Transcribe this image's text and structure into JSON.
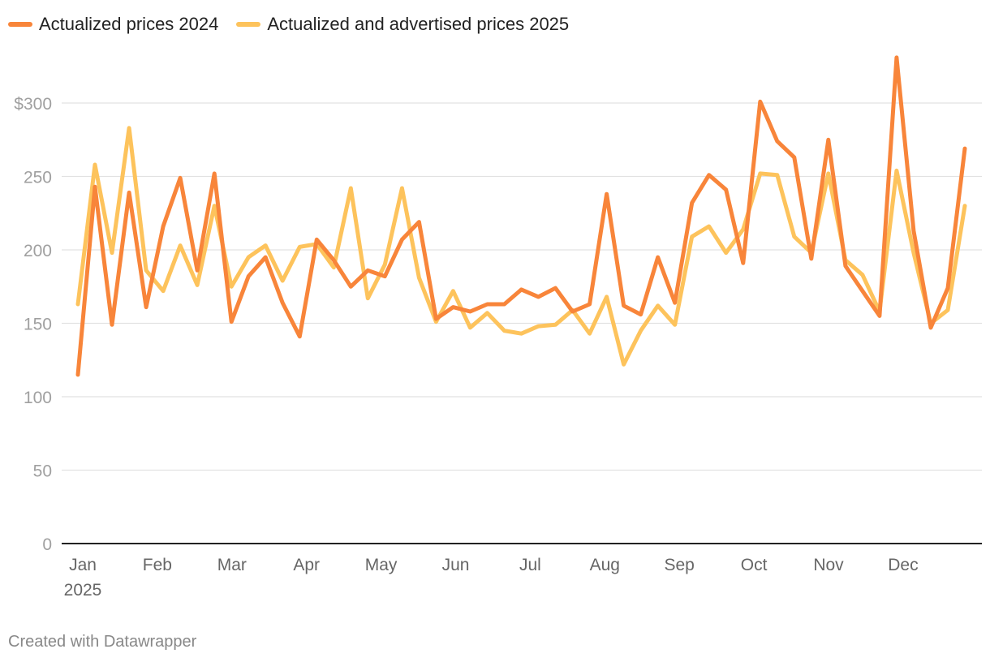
{
  "legend": {
    "items": [
      {
        "label": "Actualized prices 2024",
        "color": "#F8853A"
      },
      {
        "label": "Actualized and advertised prices 2025",
        "color": "#FDC35C"
      }
    ]
  },
  "credit": "Created with Datawrapper",
  "chart_data": {
    "type": "line",
    "y_ticks": [
      {
        "value": 0,
        "label": "0"
      },
      {
        "value": 50,
        "label": "50"
      },
      {
        "value": 100,
        "label": "100"
      },
      {
        "value": 150,
        "label": "150"
      },
      {
        "value": 200,
        "label": "200"
      },
      {
        "value": 250,
        "label": "250"
      },
      {
        "value": 300,
        "label": "$300"
      }
    ],
    "ylim": [
      0,
      330
    ],
    "x_ticks": [
      {
        "month": 0,
        "label": "Jan",
        "sublabel": "2025"
      },
      {
        "month": 1,
        "label": "Feb"
      },
      {
        "month": 2,
        "label": "Mar"
      },
      {
        "month": 3,
        "label": "Apr"
      },
      {
        "month": 4,
        "label": "May"
      },
      {
        "month": 5,
        "label": "Jun"
      },
      {
        "month": 6,
        "label": "Jul"
      },
      {
        "month": 7,
        "label": "Aug"
      },
      {
        "month": 8,
        "label": "Sep"
      },
      {
        "month": 9,
        "label": "Oct"
      },
      {
        "month": 10,
        "label": "Nov"
      },
      {
        "month": 11,
        "label": "Dec"
      }
    ],
    "xlim": [
      0,
      12
    ],
    "grid": true,
    "legend_position": "top-left",
    "series": [
      {
        "name": "Actualized prices 2024",
        "color": "#F8853A",
        "values": [
          115,
          243,
          149,
          239,
          161,
          216,
          249,
          186,
          252,
          151,
          182,
          195,
          164,
          141,
          207,
          193,
          175,
          186,
          182,
          207,
          219,
          153,
          161,
          158,
          163,
          163,
          173,
          168,
          174,
          158,
          163,
          238,
          162,
          156,
          195,
          164,
          232,
          251,
          241,
          191,
          301,
          274,
          263,
          194,
          275,
          189,
          172,
          155,
          331,
          213,
          147,
          174,
          269
        ]
      },
      {
        "name": "Actualized and advertised prices 2025",
        "color": "#FDC35C",
        "values": [
          163,
          258,
          198,
          283,
          186,
          172,
          203,
          176,
          230,
          175,
          195,
          203,
          179,
          202,
          204,
          188,
          242,
          167,
          190,
          242,
          181,
          151,
          172,
          147,
          157,
          145,
          143,
          148,
          149,
          159,
          143,
          168,
          122,
          145,
          162,
          149,
          209,
          216,
          198,
          214,
          252,
          251,
          209,
          198,
          252,
          193,
          183,
          158,
          254,
          198,
          150,
          159,
          230
        ]
      }
    ]
  }
}
